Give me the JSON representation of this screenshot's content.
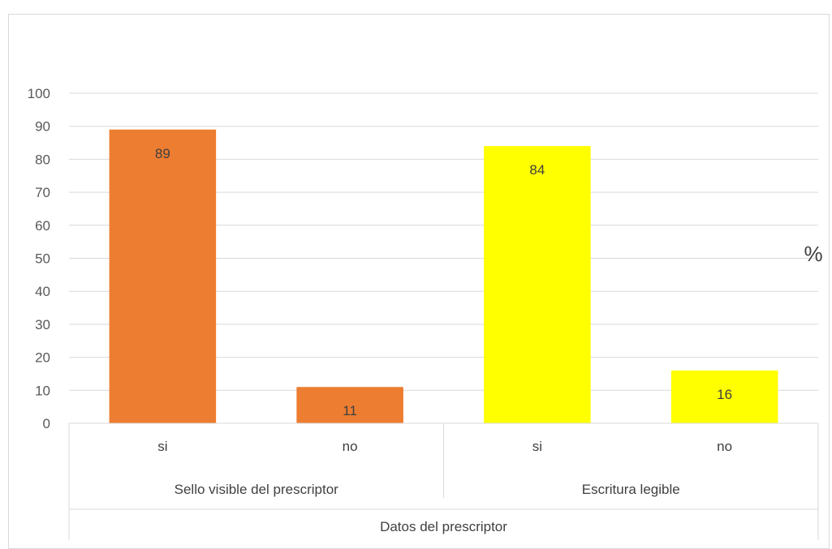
{
  "chart_data": {
    "type": "bar",
    "categories": [
      "si",
      "no",
      "si",
      "no"
    ],
    "groups": [
      {
        "label": "Sello visible del prescriptor",
        "members": [
          0,
          1
        ]
      },
      {
        "label": "Escritura legible",
        "members": [
          2,
          3
        ]
      }
    ],
    "super_group": "Datos del prescriptor",
    "values": [
      89,
      11,
      84,
      16
    ],
    "data_labels": [
      "89",
      "11",
      "84",
      "16"
    ],
    "colors": [
      "#ED7D31",
      "#ED7D31",
      "#FFFF00",
      "#FFFF00"
    ],
    "ylim": [
      0,
      100
    ],
    "yticks": [
      0,
      10,
      20,
      30,
      40,
      50,
      60,
      70,
      80,
      90,
      100
    ],
    "y_unit": "%",
    "grid": true,
    "legend": "none"
  }
}
